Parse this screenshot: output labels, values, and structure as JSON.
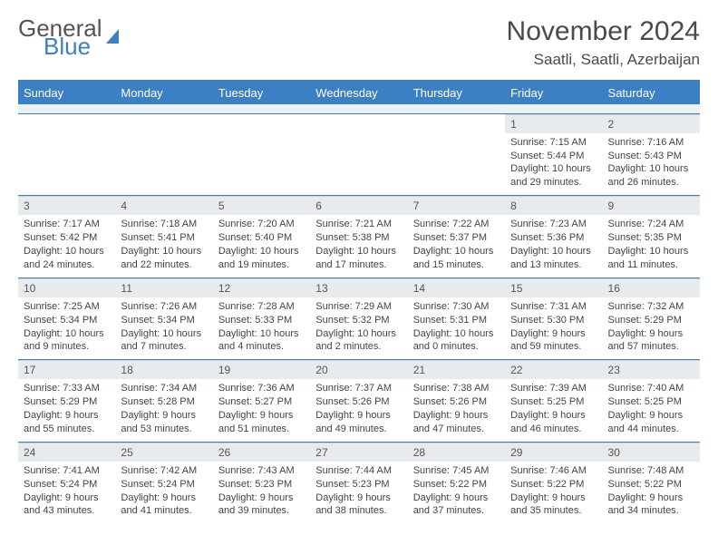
{
  "logo": {
    "line1": "General",
    "line2": "Blue"
  },
  "title": "November 2024",
  "location": "Saatli, Saatli, Azerbaijan",
  "colors": {
    "accent": "#3b7fc4",
    "daynum_bg": "#e8ebee",
    "text": "#444444",
    "header_text": "#ffffff"
  },
  "typography": {
    "title_size": 30,
    "location_size": 17,
    "header_size": 13,
    "body_size": 11
  },
  "day_headers": [
    "Sunday",
    "Monday",
    "Tuesday",
    "Wednesday",
    "Thursday",
    "Friday",
    "Saturday"
  ],
  "weeks": [
    [
      null,
      null,
      null,
      null,
      null,
      {
        "n": "1",
        "sr": "Sunrise: 7:15 AM",
        "ss": "Sunset: 5:44 PM",
        "d1": "Daylight: 10 hours",
        "d2": "and 29 minutes."
      },
      {
        "n": "2",
        "sr": "Sunrise: 7:16 AM",
        "ss": "Sunset: 5:43 PM",
        "d1": "Daylight: 10 hours",
        "d2": "and 26 minutes."
      }
    ],
    [
      {
        "n": "3",
        "sr": "Sunrise: 7:17 AM",
        "ss": "Sunset: 5:42 PM",
        "d1": "Daylight: 10 hours",
        "d2": "and 24 minutes."
      },
      {
        "n": "4",
        "sr": "Sunrise: 7:18 AM",
        "ss": "Sunset: 5:41 PM",
        "d1": "Daylight: 10 hours",
        "d2": "and 22 minutes."
      },
      {
        "n": "5",
        "sr": "Sunrise: 7:20 AM",
        "ss": "Sunset: 5:40 PM",
        "d1": "Daylight: 10 hours",
        "d2": "and 19 minutes."
      },
      {
        "n": "6",
        "sr": "Sunrise: 7:21 AM",
        "ss": "Sunset: 5:38 PM",
        "d1": "Daylight: 10 hours",
        "d2": "and 17 minutes."
      },
      {
        "n": "7",
        "sr": "Sunrise: 7:22 AM",
        "ss": "Sunset: 5:37 PM",
        "d1": "Daylight: 10 hours",
        "d2": "and 15 minutes."
      },
      {
        "n": "8",
        "sr": "Sunrise: 7:23 AM",
        "ss": "Sunset: 5:36 PM",
        "d1": "Daylight: 10 hours",
        "d2": "and 13 minutes."
      },
      {
        "n": "9",
        "sr": "Sunrise: 7:24 AM",
        "ss": "Sunset: 5:35 PM",
        "d1": "Daylight: 10 hours",
        "d2": "and 11 minutes."
      }
    ],
    [
      {
        "n": "10",
        "sr": "Sunrise: 7:25 AM",
        "ss": "Sunset: 5:34 PM",
        "d1": "Daylight: 10 hours",
        "d2": "and 9 minutes."
      },
      {
        "n": "11",
        "sr": "Sunrise: 7:26 AM",
        "ss": "Sunset: 5:34 PM",
        "d1": "Daylight: 10 hours",
        "d2": "and 7 minutes."
      },
      {
        "n": "12",
        "sr": "Sunrise: 7:28 AM",
        "ss": "Sunset: 5:33 PM",
        "d1": "Daylight: 10 hours",
        "d2": "and 4 minutes."
      },
      {
        "n": "13",
        "sr": "Sunrise: 7:29 AM",
        "ss": "Sunset: 5:32 PM",
        "d1": "Daylight: 10 hours",
        "d2": "and 2 minutes."
      },
      {
        "n": "14",
        "sr": "Sunrise: 7:30 AM",
        "ss": "Sunset: 5:31 PM",
        "d1": "Daylight: 10 hours",
        "d2": "and 0 minutes."
      },
      {
        "n": "15",
        "sr": "Sunrise: 7:31 AM",
        "ss": "Sunset: 5:30 PM",
        "d1": "Daylight: 9 hours",
        "d2": "and 59 minutes."
      },
      {
        "n": "16",
        "sr": "Sunrise: 7:32 AM",
        "ss": "Sunset: 5:29 PM",
        "d1": "Daylight: 9 hours",
        "d2": "and 57 minutes."
      }
    ],
    [
      {
        "n": "17",
        "sr": "Sunrise: 7:33 AM",
        "ss": "Sunset: 5:29 PM",
        "d1": "Daylight: 9 hours",
        "d2": "and 55 minutes."
      },
      {
        "n": "18",
        "sr": "Sunrise: 7:34 AM",
        "ss": "Sunset: 5:28 PM",
        "d1": "Daylight: 9 hours",
        "d2": "and 53 minutes."
      },
      {
        "n": "19",
        "sr": "Sunrise: 7:36 AM",
        "ss": "Sunset: 5:27 PM",
        "d1": "Daylight: 9 hours",
        "d2": "and 51 minutes."
      },
      {
        "n": "20",
        "sr": "Sunrise: 7:37 AM",
        "ss": "Sunset: 5:26 PM",
        "d1": "Daylight: 9 hours",
        "d2": "and 49 minutes."
      },
      {
        "n": "21",
        "sr": "Sunrise: 7:38 AM",
        "ss": "Sunset: 5:26 PM",
        "d1": "Daylight: 9 hours",
        "d2": "and 47 minutes."
      },
      {
        "n": "22",
        "sr": "Sunrise: 7:39 AM",
        "ss": "Sunset: 5:25 PM",
        "d1": "Daylight: 9 hours",
        "d2": "and 46 minutes."
      },
      {
        "n": "23",
        "sr": "Sunrise: 7:40 AM",
        "ss": "Sunset: 5:25 PM",
        "d1": "Daylight: 9 hours",
        "d2": "and 44 minutes."
      }
    ],
    [
      {
        "n": "24",
        "sr": "Sunrise: 7:41 AM",
        "ss": "Sunset: 5:24 PM",
        "d1": "Daylight: 9 hours",
        "d2": "and 43 minutes."
      },
      {
        "n": "25",
        "sr": "Sunrise: 7:42 AM",
        "ss": "Sunset: 5:24 PM",
        "d1": "Daylight: 9 hours",
        "d2": "and 41 minutes."
      },
      {
        "n": "26",
        "sr": "Sunrise: 7:43 AM",
        "ss": "Sunset: 5:23 PM",
        "d1": "Daylight: 9 hours",
        "d2": "and 39 minutes."
      },
      {
        "n": "27",
        "sr": "Sunrise: 7:44 AM",
        "ss": "Sunset: 5:23 PM",
        "d1": "Daylight: 9 hours",
        "d2": "and 38 minutes."
      },
      {
        "n": "28",
        "sr": "Sunrise: 7:45 AM",
        "ss": "Sunset: 5:22 PM",
        "d1": "Daylight: 9 hours",
        "d2": "and 37 minutes."
      },
      {
        "n": "29",
        "sr": "Sunrise: 7:46 AM",
        "ss": "Sunset: 5:22 PM",
        "d1": "Daylight: 9 hours",
        "d2": "and 35 minutes."
      },
      {
        "n": "30",
        "sr": "Sunrise: 7:48 AM",
        "ss": "Sunset: 5:22 PM",
        "d1": "Daylight: 9 hours",
        "d2": "and 34 minutes."
      }
    ]
  ]
}
